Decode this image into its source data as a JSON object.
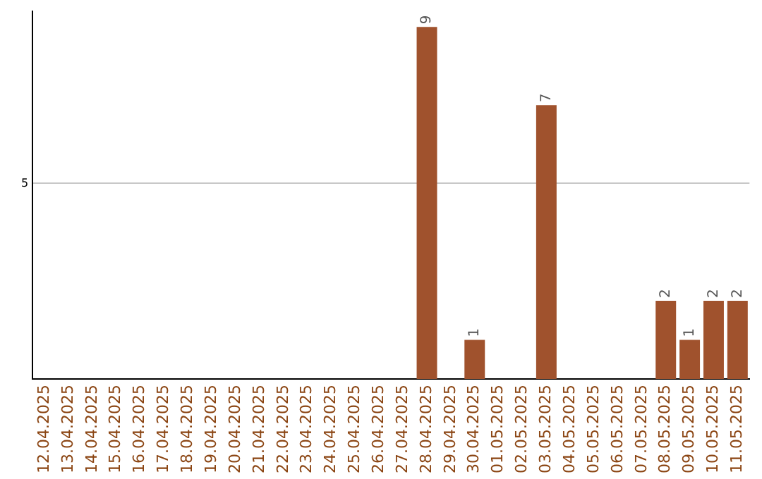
{
  "chart_data": {
    "type": "bar",
    "categories": [
      "12.04.2025",
      "13.04.2025",
      "14.04.2025",
      "15.04.2025",
      "16.04.2025",
      "17.04.2025",
      "18.04.2025",
      "19.04.2025",
      "20.04.2025",
      "21.04.2025",
      "22.04.2025",
      "23.04.2025",
      "24.04.2025",
      "25.04.2025",
      "26.04.2025",
      "27.04.2025",
      "28.04.2025",
      "29.04.2025",
      "30.04.2025",
      "01.05.2025",
      "02.05.2025",
      "03.05.2025",
      "04.05.2025",
      "05.05.2025",
      "06.05.2025",
      "07.05.2025",
      "08.05.2025",
      "09.05.2025",
      "10.05.2025",
      "11.05.2025"
    ],
    "values": [
      null,
      null,
      null,
      null,
      null,
      null,
      null,
      null,
      null,
      null,
      null,
      null,
      null,
      null,
      null,
      null,
      9,
      null,
      1,
      null,
      null,
      7,
      null,
      null,
      null,
      null,
      2,
      1,
      2,
      2
    ],
    "data_labels": true,
    "color": "#a0522d",
    "ylim": [
      0,
      9.4
    ],
    "yticks": [
      5
    ],
    "grid": "y",
    "legend": false
  }
}
